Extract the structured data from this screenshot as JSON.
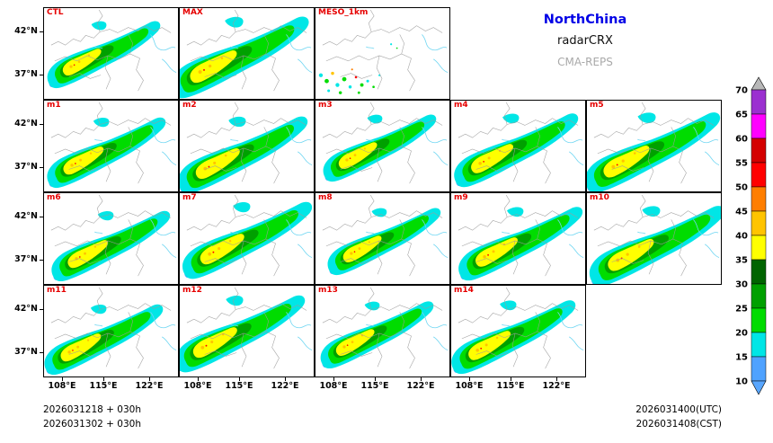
{
  "title_block": {
    "region": "NorthChina",
    "product": "radarCRX",
    "model": "CMA-REPS"
  },
  "colors": {
    "region_text": "#0000E6",
    "product_text": "#111111",
    "model_text": "#A9A9A9",
    "panel_label": "#E60000",
    "boundary_line": "#9C9C9C",
    "coast_line": "#6FD6F2"
  },
  "panels": [
    {
      "label": "CTL",
      "variant": "full"
    },
    {
      "label": "MAX",
      "variant": "full",
      "emphasis": 1.12
    },
    {
      "label": "MESO_1km",
      "variant": "sparse"
    },
    {
      "label": "m1",
      "variant": "full"
    },
    {
      "label": "m2",
      "variant": "full"
    },
    {
      "label": "m3",
      "variant": "full"
    },
    {
      "label": "m4",
      "variant": "full"
    },
    {
      "label": "m5",
      "variant": "full"
    },
    {
      "label": "m6",
      "variant": "full"
    },
    {
      "label": "m7",
      "variant": "full"
    },
    {
      "label": "m8",
      "variant": "full"
    },
    {
      "label": "m9",
      "variant": "full"
    },
    {
      "label": "m10",
      "variant": "full"
    },
    {
      "label": "m11",
      "variant": "full"
    },
    {
      "label": "m12",
      "variant": "full"
    },
    {
      "label": "m13",
      "variant": "full"
    },
    {
      "label": "m14",
      "variant": "full"
    }
  ],
  "axes": {
    "lat_labels": [
      "42°N",
      "37°N"
    ],
    "lon_labels": [
      "108°E",
      "115°E",
      "122°E"
    ]
  },
  "colorbar": {
    "tick_labels": [
      "70",
      "65",
      "60",
      "55",
      "50",
      "45",
      "40",
      "35",
      "30",
      "25",
      "20",
      "15",
      "10"
    ],
    "segments_top_to_bottom": [
      "#9B30D0",
      "#FF00FF",
      "#D40000",
      "#FF0000",
      "#FF7E00",
      "#FFC400",
      "#FFFF00",
      "#006400",
      "#00A000",
      "#00DC00",
      "#00E6E6",
      "#4FA2FF"
    ],
    "arrow_top": "#B8B8B8",
    "arrow_bottom": "#58A6FF"
  },
  "footer": {
    "left_lines": [
      "2026031218 + 030h",
      "2026031302 + 030h"
    ],
    "right_lines": [
      "2026031400(UTC)",
      "2026031408(CST)"
    ]
  },
  "chart_data": {
    "type": "heatmap",
    "title": "NorthChina radarCRX CMA-REPS",
    "panels": [
      "CTL",
      "MAX",
      "MESO_1km",
      "m1",
      "m2",
      "m3",
      "m4",
      "m5",
      "m6",
      "m7",
      "m8",
      "m9",
      "m10",
      "m11",
      "m12",
      "m13",
      "m14"
    ],
    "x_ticks": [
      "108°E",
      "115°E",
      "122°E"
    ],
    "y_ticks": [
      "42°N",
      "37°N"
    ],
    "colorbar_levels": [
      10,
      15,
      20,
      25,
      30,
      35,
      40,
      45,
      50,
      55,
      60,
      65,
      70
    ],
    "legend_position": "right",
    "init_labels": [
      "2026031218 + 030h",
      "2026031302 + 030h"
    ],
    "valid_labels": [
      "2026031400(UTC)",
      "2026031408(CST)"
    ]
  }
}
